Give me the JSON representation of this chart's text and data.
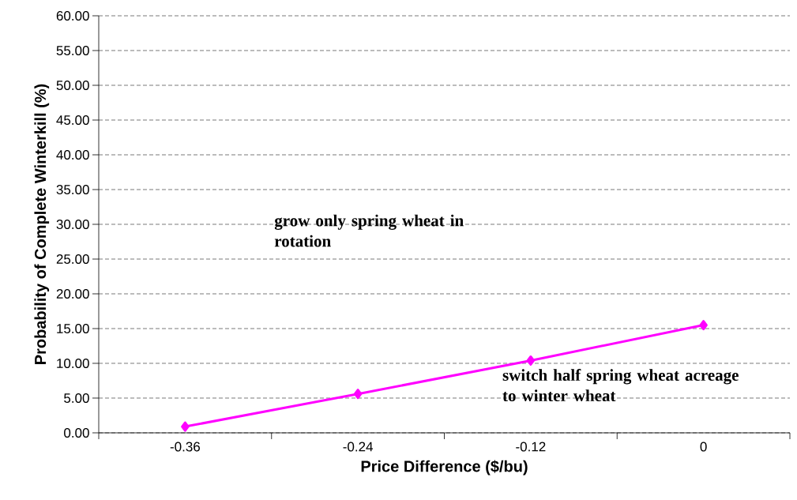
{
  "chart_data": {
    "type": "line",
    "xlabel": "Price Difference ($/bu)",
    "ylabel": "Probability of Complete Winterkill (%)",
    "categories": [
      "-0.36",
      "-0.24",
      "-0.12",
      "0"
    ],
    "series": [
      {
        "color": "#ff00ff",
        "values": [
          0.9,
          5.6,
          10.4,
          15.5
        ]
      }
    ],
    "ylim": [
      0,
      60
    ],
    "yticks": [
      {
        "value": 0,
        "label": "0.00"
      },
      {
        "value": 5,
        "label": "5.00"
      },
      {
        "value": 10,
        "label": "10.00"
      },
      {
        "value": 15,
        "label": "15.00"
      },
      {
        "value": 20,
        "label": "20.00"
      },
      {
        "value": 25,
        "label": "25.00"
      },
      {
        "value": 30,
        "label": "30.00"
      },
      {
        "value": 35,
        "label": "35.00"
      },
      {
        "value": 40,
        "label": "40.00"
      },
      {
        "value": 45,
        "label": "45.00"
      },
      {
        "value": 50,
        "label": "50.00"
      },
      {
        "value": 55,
        "label": "55.00"
      },
      {
        "value": 60,
        "label": "60.00"
      }
    ],
    "grid": "y",
    "marker": "diamond",
    "line_style": "solid",
    "annotations": [
      "grow only spring wheat in rotation",
      "switch half spring wheat acreage to winter wheat"
    ]
  }
}
